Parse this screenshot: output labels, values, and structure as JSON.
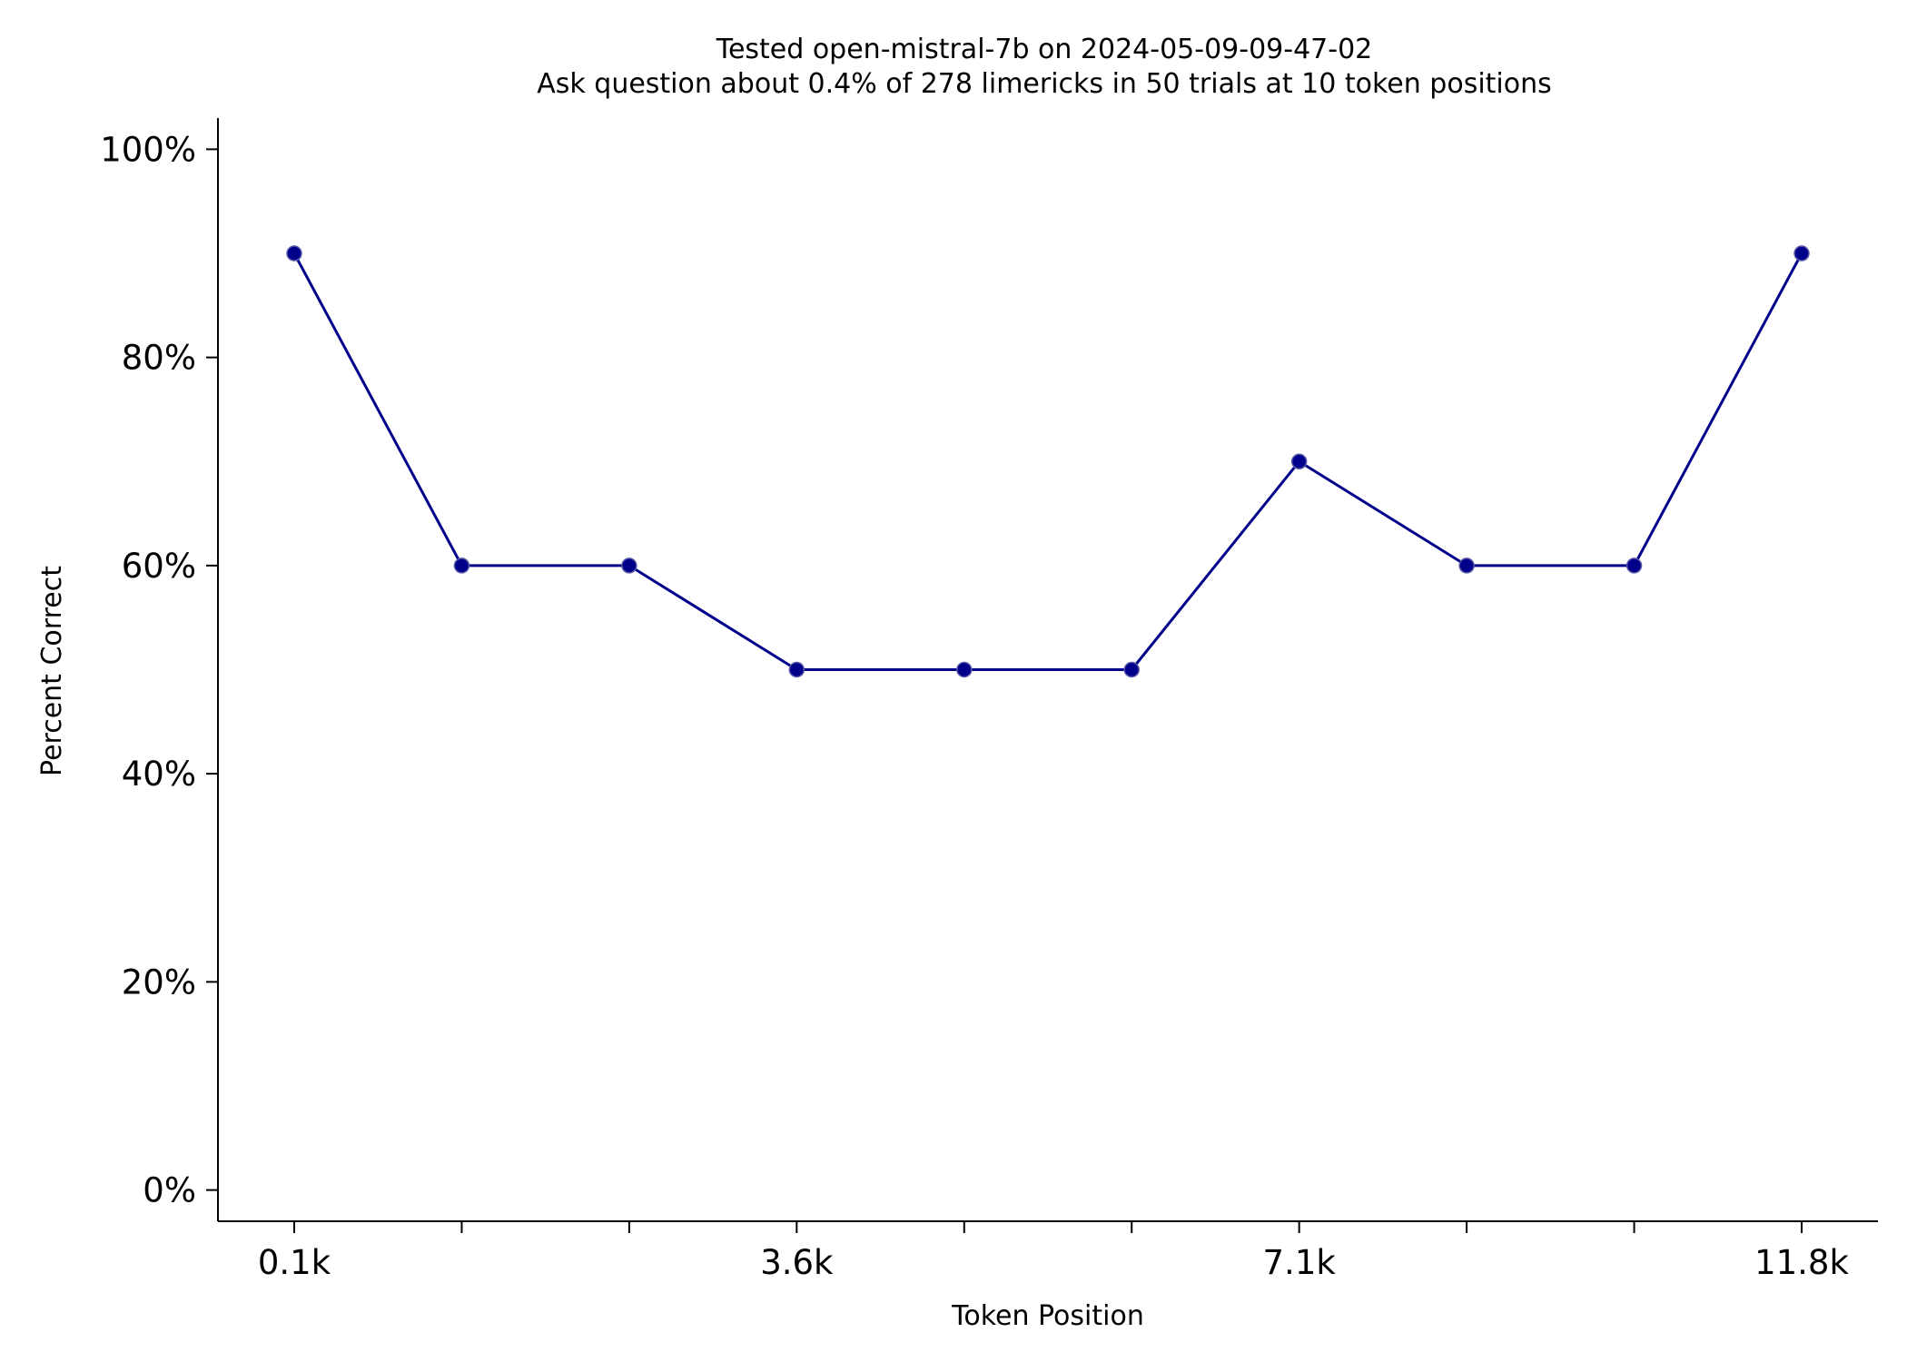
{
  "chart_data": {
    "type": "line",
    "title": "Tested open-mistral-7b on 2024-05-09-09-47-02",
    "subtitle": "Ask question about 0.4% of 278 limericks in 50 trials at 10 token positions",
    "xlabel": "Token Position",
    "ylabel": "Percent Correct",
    "x_tick_labels": [
      "0.1k",
      "",
      "",
      "3.6k",
      "",
      "",
      "7.1k",
      "",
      "",
      "11.8k"
    ],
    "y_tick_labels": [
      "0%",
      "20%",
      "40%",
      "60%",
      "80%",
      "100%"
    ],
    "y_ticks": [
      0,
      20,
      40,
      60,
      80,
      100
    ],
    "ylim": [
      -3,
      103
    ],
    "series": [
      {
        "values": [
          90,
          60,
          60,
          50,
          50,
          50,
          70,
          60,
          60,
          90
        ],
        "color": "#00008b"
      }
    ],
    "grid": false,
    "legend": "none"
  }
}
